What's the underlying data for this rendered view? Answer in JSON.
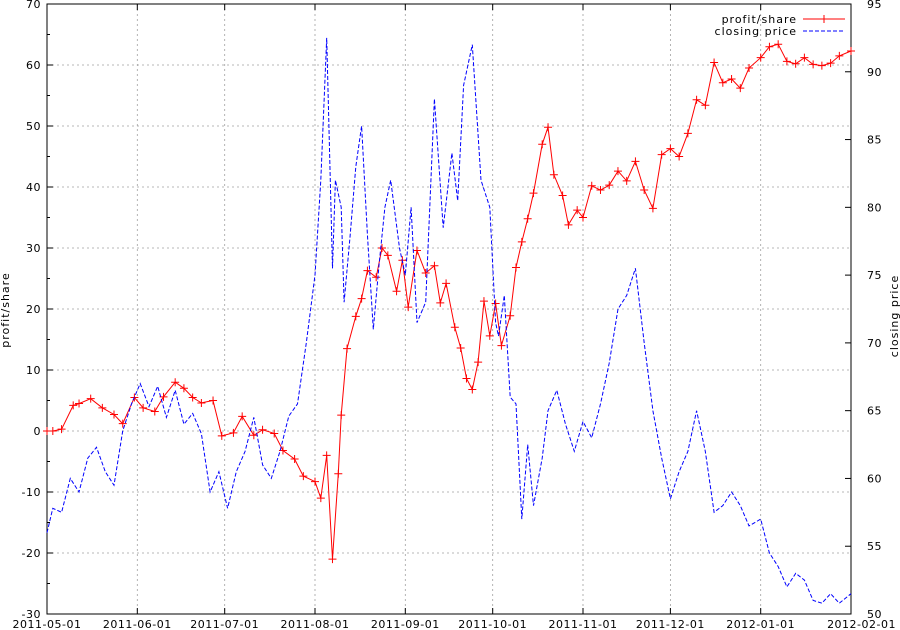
{
  "chart_data": {
    "type": "line",
    "xlabel": "",
    "ylabel": "profit/share",
    "y2label": "closing price",
    "xlim": [
      "2011-05-01",
      "2012-02-01"
    ],
    "ylim": [
      -30,
      70
    ],
    "y2lim": [
      50,
      95
    ],
    "x_ticks": [
      "2011-05-01",
      "2011-06-01",
      "2011-07-01",
      "2011-08-01",
      "2011-09-01",
      "2011-10-01",
      "2011-11-01",
      "2011-12-01",
      "2012-01-01",
      "2012-02-01"
    ],
    "y_ticks": [
      "-30",
      "-20",
      "-10",
      "0",
      "10",
      "20",
      "30",
      "40",
      "50",
      "60",
      "70"
    ],
    "y2_ticks": [
      "50",
      "55",
      "60",
      "65",
      "70",
      "75",
      "80",
      "85",
      "90",
      "95"
    ],
    "grid": true,
    "legend_position": "top-right",
    "series": [
      {
        "name": "profit/share",
        "axis": "left",
        "color": "#ff0000",
        "style": "solid",
        "marker": "plus",
        "x": [
          "2011-05-01",
          "2011-05-03",
          "2011-05-06",
          "2011-05-10",
          "2011-05-12",
          "2011-05-16",
          "2011-05-20",
          "2011-05-24",
          "2011-05-27",
          "2011-05-31",
          "2011-06-03",
          "2011-06-07",
          "2011-06-10",
          "2011-06-14",
          "2011-06-17",
          "2011-06-20",
          "2011-06-23",
          "2011-06-27",
          "2011-06-30",
          "2011-07-04",
          "2011-07-07",
          "2011-07-11",
          "2011-07-14",
          "2011-07-18",
          "2011-07-21",
          "2011-07-25",
          "2011-07-28",
          "2011-08-01",
          "2011-08-03",
          "2011-08-05",
          "2011-08-07",
          "2011-08-09",
          "2011-08-10",
          "2011-08-12",
          "2011-08-15",
          "2011-08-17",
          "2011-08-19",
          "2011-08-22",
          "2011-08-24",
          "2011-08-26",
          "2011-08-29",
          "2011-08-31",
          "2011-09-02",
          "2011-09-05",
          "2011-09-08",
          "2011-09-11",
          "2011-09-13",
          "2011-09-15",
          "2011-09-18",
          "2011-09-20",
          "2011-09-22",
          "2011-09-24",
          "2011-09-26",
          "2011-09-28",
          "2011-09-30",
          "2011-10-02",
          "2011-10-04",
          "2011-10-07",
          "2011-10-09",
          "2011-10-11",
          "2011-10-13",
          "2011-10-15",
          "2011-10-18",
          "2011-10-20",
          "2011-10-22",
          "2011-10-25",
          "2011-10-27",
          "2011-10-30",
          "2011-11-01",
          "2011-11-04",
          "2011-11-07",
          "2011-11-10",
          "2011-11-13",
          "2011-11-16",
          "2011-11-19",
          "2011-11-22",
          "2011-11-25",
          "2011-11-28",
          "2011-12-01",
          "2011-12-04",
          "2011-12-07",
          "2011-12-10",
          "2011-12-13",
          "2011-12-16",
          "2011-12-19",
          "2011-12-22",
          "2011-12-25",
          "2011-12-28",
          "2012-01-01",
          "2012-01-04",
          "2012-01-07",
          "2012-01-10",
          "2012-01-13",
          "2012-01-16",
          "2012-01-19",
          "2012-01-22",
          "2012-01-25",
          "2012-01-28",
          "2012-02-01"
        ],
        "values": [
          0,
          0,
          0.3,
          4.2,
          4.5,
          5.3,
          3.8,
          2.7,
          1.2,
          5.5,
          3.8,
          3.2,
          5.6,
          8.0,
          7.0,
          5.5,
          4.6,
          5.0,
          -0.8,
          -0.3,
          2.4,
          -0.7,
          0.2,
          -0.4,
          -3.2,
          -4.6,
          -7.4,
          -8.3,
          -11,
          -4.0,
          -21,
          -7,
          2.6,
          13.5,
          18.8,
          21.7,
          26.3,
          25.2,
          30.0,
          28.8,
          22.9,
          28.0,
          20.3,
          29.6,
          25.9,
          27.1,
          21.0,
          24.2,
          17.0,
          13.6,
          8.6,
          6.8,
          11.3,
          21.3,
          15.6,
          20.9,
          14.0,
          18.9,
          26.8,
          31.0,
          34.8,
          39.0,
          47.0,
          49.8,
          42.0,
          38.6,
          33.8,
          36.2,
          35.0,
          40.2,
          39.5,
          40.3,
          42.6,
          41.0,
          44.2,
          39.5,
          36.5,
          45.3,
          46.3,
          45.0,
          48.8,
          54.3,
          53.4,
          60.4,
          57.1,
          57.7,
          56.2,
          59.5,
          61.2,
          63.0,
          63.4,
          60.6,
          60.2,
          61.2,
          60.1,
          59.9,
          60.3,
          61.5,
          62.3
        ]
      },
      {
        "name": "closing price",
        "axis": "right",
        "color": "#0000ff",
        "style": "dashed",
        "marker": "none",
        "x": [
          "2011-05-01",
          "2011-05-03",
          "2011-05-06",
          "2011-05-09",
          "2011-05-12",
          "2011-05-15",
          "2011-05-18",
          "2011-05-21",
          "2011-05-24",
          "2011-05-27",
          "2011-05-30",
          "2011-06-02",
          "2011-06-05",
          "2011-06-08",
          "2011-06-11",
          "2011-06-14",
          "2011-06-17",
          "2011-06-20",
          "2011-06-23",
          "2011-06-26",
          "2011-06-29",
          "2011-07-02",
          "2011-07-05",
          "2011-07-08",
          "2011-07-11",
          "2011-07-14",
          "2011-07-17",
          "2011-07-20",
          "2011-07-23",
          "2011-07-26",
          "2011-07-29",
          "2011-08-01",
          "2011-08-03",
          "2011-08-05",
          "2011-08-07",
          "2011-08-08",
          "2011-08-10",
          "2011-08-11",
          "2011-08-13",
          "2011-08-15",
          "2011-08-17",
          "2011-08-19",
          "2011-08-21",
          "2011-08-23",
          "2011-08-25",
          "2011-08-27",
          "2011-08-30",
          "2011-09-01",
          "2011-09-03",
          "2011-09-05",
          "2011-09-08",
          "2011-09-11",
          "2011-09-14",
          "2011-09-17",
          "2011-09-19",
          "2011-09-21",
          "2011-09-24",
          "2011-09-27",
          "2011-09-30",
          "2011-10-02",
          "2011-10-03",
          "2011-10-05",
          "2011-10-07",
          "2011-10-09",
          "2011-10-11",
          "2011-10-13",
          "2011-10-15",
          "2011-10-18",
          "2011-10-20",
          "2011-10-23",
          "2011-10-26",
          "2011-10-29",
          "2011-11-01",
          "2011-11-04",
          "2011-11-07",
          "2011-11-10",
          "2011-11-13",
          "2011-11-16",
          "2011-11-19",
          "2011-11-22",
          "2011-11-25",
          "2011-11-28",
          "2011-12-01",
          "2011-12-04",
          "2011-12-07",
          "2011-12-10",
          "2011-12-13",
          "2011-12-16",
          "2011-12-19",
          "2011-12-22",
          "2011-12-25",
          "2011-12-28",
          "2012-01-01",
          "2012-01-04",
          "2012-01-07",
          "2012-01-10",
          "2012-01-13",
          "2012-01-16",
          "2012-01-19",
          "2012-01-22",
          "2012-01-25",
          "2012-01-28",
          "2012-02-01"
        ],
        "values": [
          56,
          57.8,
          57.5,
          60.0,
          59.0,
          61.5,
          62.3,
          60.5,
          59.5,
          63.5,
          65.5,
          67.0,
          65.3,
          66.8,
          64.5,
          66.5,
          64.0,
          64.8,
          63.3,
          59.0,
          60.5,
          57.8,
          60.5,
          62.0,
          64.5,
          61.0,
          60.0,
          62.0,
          64.6,
          65.5,
          70.0,
          75.0,
          82.0,
          92.5,
          75.5,
          82.0,
          80.0,
          73.0,
          77.8,
          83.0,
          86.0,
          78.0,
          71.0,
          75.8,
          80.0,
          82.0,
          77.0,
          75.0,
          80.0,
          71.5,
          73.0,
          88.0,
          78.5,
          84.0,
          80.5,
          89.0,
          92.0,
          82.0,
          80.0,
          71.5,
          70.5,
          73.5,
          66.0,
          65.5,
          57.0,
          62.5,
          58.0,
          61.5,
          65.0,
          66.5,
          64.0,
          62.0,
          64.2,
          63.0,
          65.5,
          68.5,
          72.5,
          73.5,
          75.5,
          70.0,
          65.0,
          61.5,
          58.5,
          60.5,
          62.0,
          65.0,
          62.0,
          57.5,
          58.0,
          59.0,
          58.0,
          56.5,
          57.0,
          54.5,
          53.5,
          52.0,
          53.0,
          52.5,
          51.0,
          50.8,
          51.5,
          50.8,
          51.5
        ]
      }
    ]
  }
}
